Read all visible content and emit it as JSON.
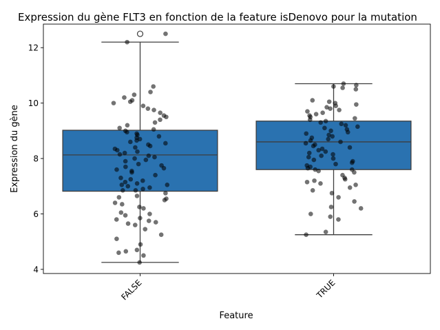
{
  "chart_data": {
    "type": "box",
    "title": "Expression du gène FLT3 en fonction de la feature isDenovo pour la mutation",
    "xlabel": "Feature",
    "ylabel": "Expression du gène",
    "categories": [
      "FALSE",
      "TRUE"
    ],
    "ylim": [
      3.85,
      12.85
    ],
    "yticks": [
      4,
      6,
      8,
      10,
      12
    ],
    "grid": false,
    "legend": "none",
    "colors": {
      "box": "#2a72b0",
      "edge": "#3d3d3d",
      "point": "#000000"
    },
    "boxes": [
      {
        "category": "FALSE",
        "whisker_low": 4.25,
        "q1": 6.82,
        "median": 8.13,
        "q3": 9.02,
        "whisker_high": 12.2,
        "outliers": [
          12.5
        ]
      },
      {
        "category": "TRUE",
        "whisker_low": 5.25,
        "q1": 7.6,
        "median": 8.6,
        "q3": 9.35,
        "whisker_high": 10.7,
        "outliers": []
      }
    ],
    "points": [
      {
        "category": "FALSE",
        "values": [
          4.25,
          4.5,
          4.6,
          4.65,
          4.7,
          4.9,
          5.1,
          5.25,
          5.45,
          5.6,
          5.65,
          5.7,
          5.75,
          5.8,
          5.85,
          5.95,
          6.0,
          6.05,
          6.2,
          6.25,
          6.35,
          6.4,
          6.5,
          6.55,
          6.6,
          6.65,
          6.75,
          6.85,
          6.85,
          6.9,
          6.95,
          7.0,
          7.05,
          7.05,
          7.1,
          7.15,
          7.2,
          7.25,
          7.3,
          7.4,
          7.5,
          7.55,
          7.6,
          7.65,
          7.7,
          7.75,
          7.8,
          7.9,
          7.95,
          8.0,
          8.05,
          8.1,
          8.15,
          8.2,
          8.25,
          8.3,
          8.35,
          8.4,
          8.45,
          8.5,
          8.55,
          8.6,
          8.65,
          8.7,
          8.75,
          8.8,
          8.85,
          8.9,
          8.95,
          9.0,
          9.05,
          9.1,
          9.2,
          9.3,
          9.4,
          9.5,
          9.55,
          9.65,
          9.75,
          9.8,
          9.9,
          10.0,
          10.05,
          10.1,
          10.2,
          10.3,
          10.4,
          10.6,
          12.2,
          12.5
        ]
      },
      {
        "category": "TRUE",
        "values": [
          5.25,
          5.35,
          5.8,
          5.9,
          6.0,
          6.2,
          6.25,
          6.45,
          6.6,
          6.75,
          6.85,
          6.95,
          7.05,
          7.1,
          7.15,
          7.2,
          7.25,
          7.3,
          7.4,
          7.5,
          7.55,
          7.6,
          7.6,
          7.65,
          7.7,
          7.75,
          7.8,
          7.85,
          7.9,
          7.95,
          8.0,
          8.05,
          8.1,
          8.15,
          8.2,
          8.25,
          8.3,
          8.35,
          8.4,
          8.45,
          8.5,
          8.55,
          8.6,
          8.65,
          8.7,
          8.75,
          8.8,
          8.85,
          8.9,
          8.95,
          9.0,
          9.05,
          9.1,
          9.15,
          9.2,
          9.25,
          9.3,
          9.35,
          9.4,
          9.45,
          9.5,
          9.55,
          9.6,
          9.65,
          9.7,
          9.75,
          9.8,
          9.85,
          9.9,
          9.95,
          10.0,
          10.05,
          10.1,
          10.5,
          10.55,
          10.6,
          10.65,
          10.7
        ]
      }
    ]
  }
}
